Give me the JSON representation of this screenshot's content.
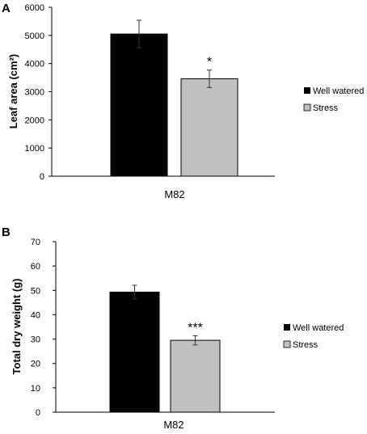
{
  "chart_data": [
    {
      "panel": "A",
      "type": "bar",
      "categories": [
        "M82"
      ],
      "series": [
        {
          "name": "Well watered",
          "values": [
            5050
          ],
          "error": [
            490
          ],
          "color": "#000000"
        },
        {
          "name": "Stress",
          "values": [
            3460
          ],
          "error": [
            310
          ],
          "color": "#c0c0c0",
          "annotation": "*"
        }
      ],
      "ylabel": "Leaf area (cm²)",
      "ylim": [
        0,
        6000
      ],
      "yticks": [
        0,
        1000,
        2000,
        3000,
        4000,
        5000,
        6000
      ],
      "legend_position": "right",
      "grid": false
    },
    {
      "panel": "B",
      "type": "bar",
      "categories": [
        "M82"
      ],
      "series": [
        {
          "name": "Well watered",
          "values": [
            49.3
          ],
          "error": [
            2.8
          ],
          "color": "#000000"
        },
        {
          "name": "Stress",
          "values": [
            29.5
          ],
          "error": [
            1.9
          ],
          "color": "#c0c0c0",
          "annotation": "***"
        }
      ],
      "ylabel": "Total dry weight (g)",
      "ylim": [
        0,
        70
      ],
      "yticks": [
        0,
        10,
        20,
        30,
        40,
        50,
        60,
        70
      ],
      "legend_position": "right",
      "grid": false
    }
  ]
}
